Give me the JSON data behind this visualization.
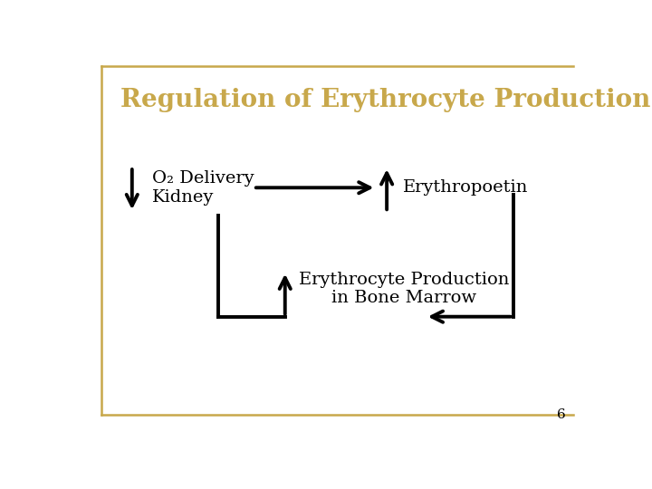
{
  "title": "Regulation of Erythrocyte Production",
  "title_color": "#c8a84b",
  "title_fontsize": 20,
  "background_color": "#ffffff",
  "border_color": "#c8a84b",
  "text_color": "#000000",
  "page_number": "6",
  "o2_label": "O₂ Delivery\nKidney",
  "erythropoetin_label": "Erythropoetin",
  "bone_marrow_label": "Erythrocyte Production\nin Bone Marrow",
  "arrow_color": "#000000",
  "arrow_linewidth": 2.8,
  "font_size_main": 14
}
